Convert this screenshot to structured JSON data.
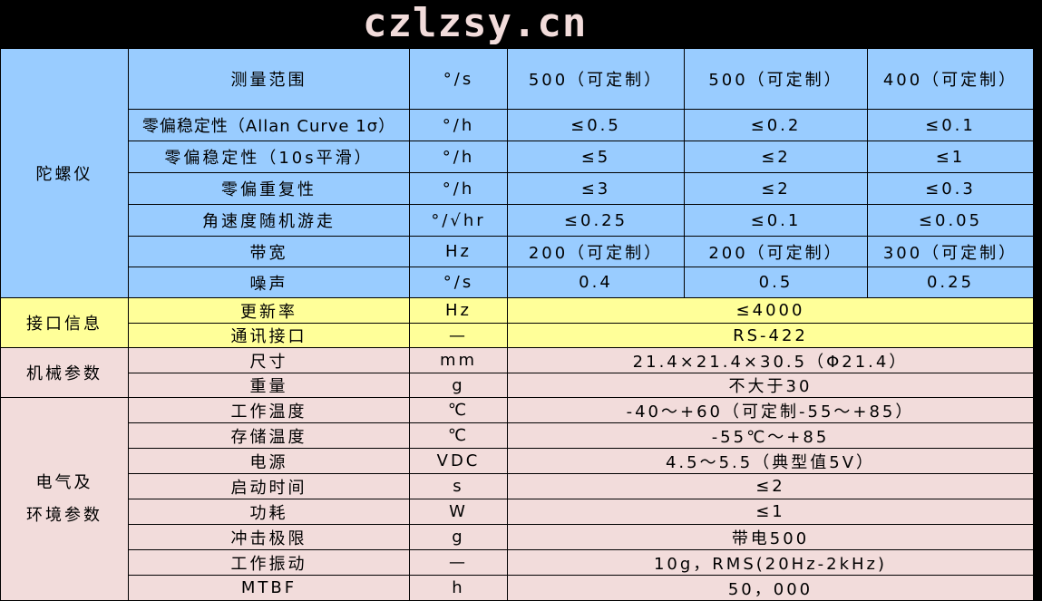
{
  "colors": {
    "gyro": "#99ccff",
    "interface": "#ffff99",
    "mechanical": "#f2dcdb",
    "environment": "#f2dcdb"
  },
  "gyro": {
    "category": "陀螺仪",
    "rows": [
      [
        "测量范围",
        "°/s",
        "500（可定制）",
        "500（可定制）",
        "400（可定制）"
      ],
      [
        "零偏稳定性（Allan Curve 1σ）",
        "°/h",
        "≤0.5",
        "≤0.2",
        "≤0.1"
      ],
      [
        "零偏稳定性（10s平滑）",
        "°/h",
        "≤5",
        "≤2",
        "≤1"
      ],
      [
        "零偏重复性",
        "°/h",
        "≤3",
        "≤2",
        "≤0.3"
      ],
      [
        "角速度随机游走",
        "°/√hr",
        "≤0.25",
        "≤0.1",
        "≤0.05"
      ],
      [
        "带宽",
        "Hz",
        "200（可定制）",
        "200（可定制）",
        "300（可定制）"
      ],
      [
        "噪声",
        "°/s",
        "0.4",
        "0.5",
        "0.25"
      ]
    ]
  },
  "interface": {
    "category": "接口信息",
    "rows": [
      [
        "更新率",
        "Hz",
        "≤4000"
      ],
      [
        "通讯接口",
        "—",
        "RS-422"
      ]
    ]
  },
  "mechanical": {
    "category": "机械参数",
    "rows": [
      [
        "尺寸",
        "mm",
        "21.4×21.4×30.5（Φ21.4）"
      ],
      [
        "重量",
        "g",
        "不大于30"
      ]
    ]
  },
  "environment": {
    "category": "电气及环境参数",
    "category_line1": "电气及",
    "category_line2": "环境参数",
    "rows": [
      [
        "工作温度",
        "℃",
        "-40～+60（可定制-55～+85）"
      ],
      [
        "存储温度",
        "℃",
        "-55℃～+85"
      ],
      [
        "电源",
        "VDC",
        "4.5～5.5（典型值5V）"
      ],
      [
        "启动时间",
        "s",
        "≤2"
      ],
      [
        "功耗",
        "W",
        "≤1"
      ],
      [
        "冲击极限",
        "g",
        "带电500"
      ],
      [
        "工作振动",
        "—",
        "10g，RMS(20Hz-2kHz)"
      ],
      [
        "MTBF",
        "h",
        "50，000"
      ]
    ]
  },
  "watermark": "czlzsy.cn"
}
